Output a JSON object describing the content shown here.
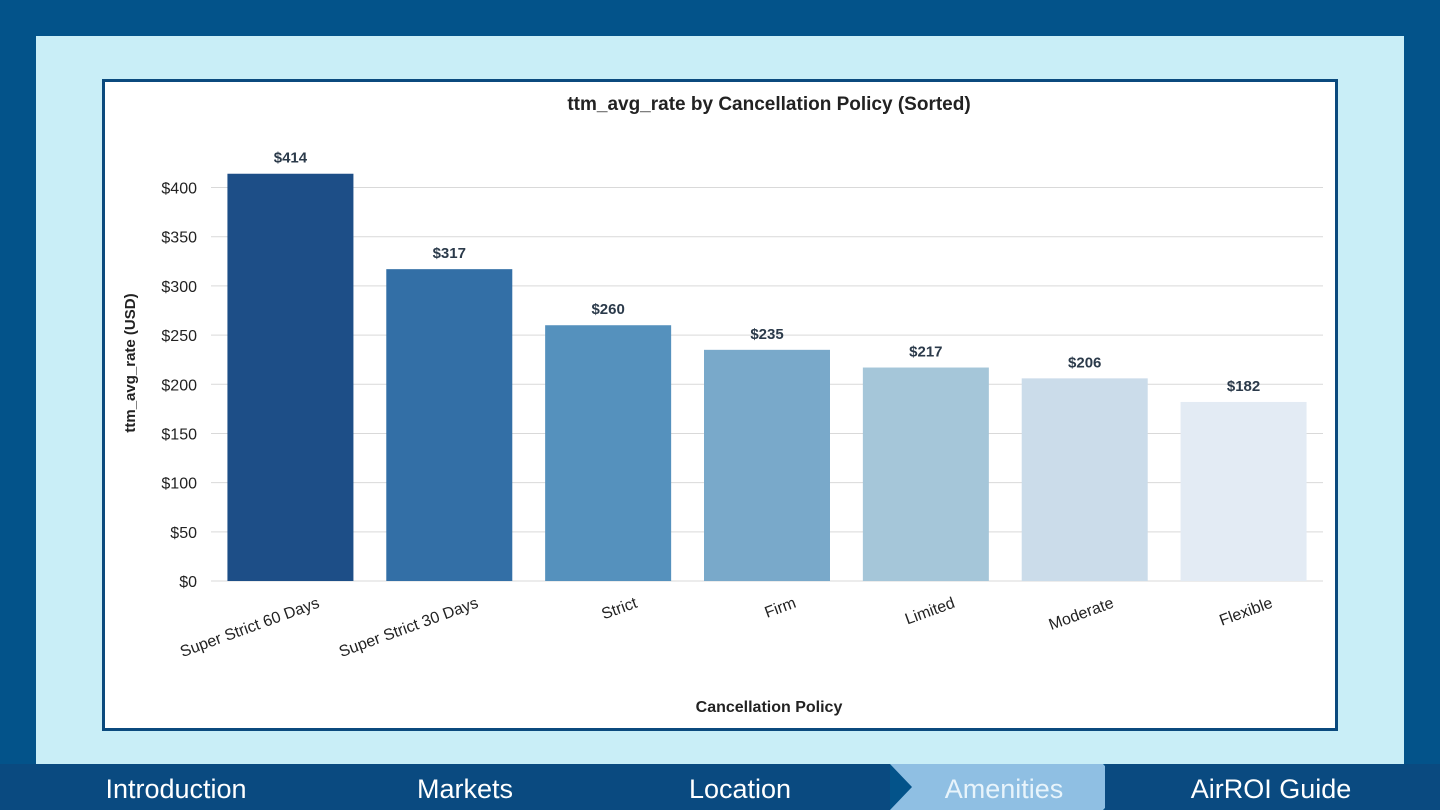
{
  "chart_data": {
    "type": "bar",
    "title": "ttm_avg_rate by Cancellation Policy (Sorted)",
    "xlabel": "Cancellation Policy",
    "ylabel": "ttm_avg_rate (USD)",
    "categories": [
      "Super Strict 60 Days",
      "Super Strict 30 Days",
      "Strict",
      "Firm",
      "Limited",
      "Moderate",
      "Flexible"
    ],
    "values": [
      414,
      317,
      260,
      235,
      217,
      206,
      182
    ],
    "data_labels": [
      "$414",
      "$317",
      "$260",
      "$235",
      "$217",
      "$206",
      "$182"
    ],
    "bar_colors": [
      "#1d4e87",
      "#336fa6",
      "#5591bd",
      "#79a9ca",
      "#a5c6d9",
      "#cbdcea",
      "#e3ebf4"
    ],
    "ylim": [
      0,
      430
    ],
    "yticks": [
      0,
      50,
      100,
      150,
      200,
      250,
      300,
      350,
      400
    ],
    "ytick_labels": [
      "$0",
      "$50",
      "$100",
      "$150",
      "$200",
      "$250",
      "$300",
      "$350",
      "$400"
    ],
    "grid": true,
    "legend": "none"
  },
  "nav": {
    "items": [
      {
        "label": "Introduction",
        "active": false
      },
      {
        "label": "Markets",
        "active": false
      },
      {
        "label": "Location",
        "active": false
      },
      {
        "label": "Amenities",
        "active": true
      },
      {
        "label": "AirROI Guide",
        "active": false
      }
    ],
    "colors": {
      "base": "#0a4a80",
      "active": "#8fbfe3"
    }
  }
}
